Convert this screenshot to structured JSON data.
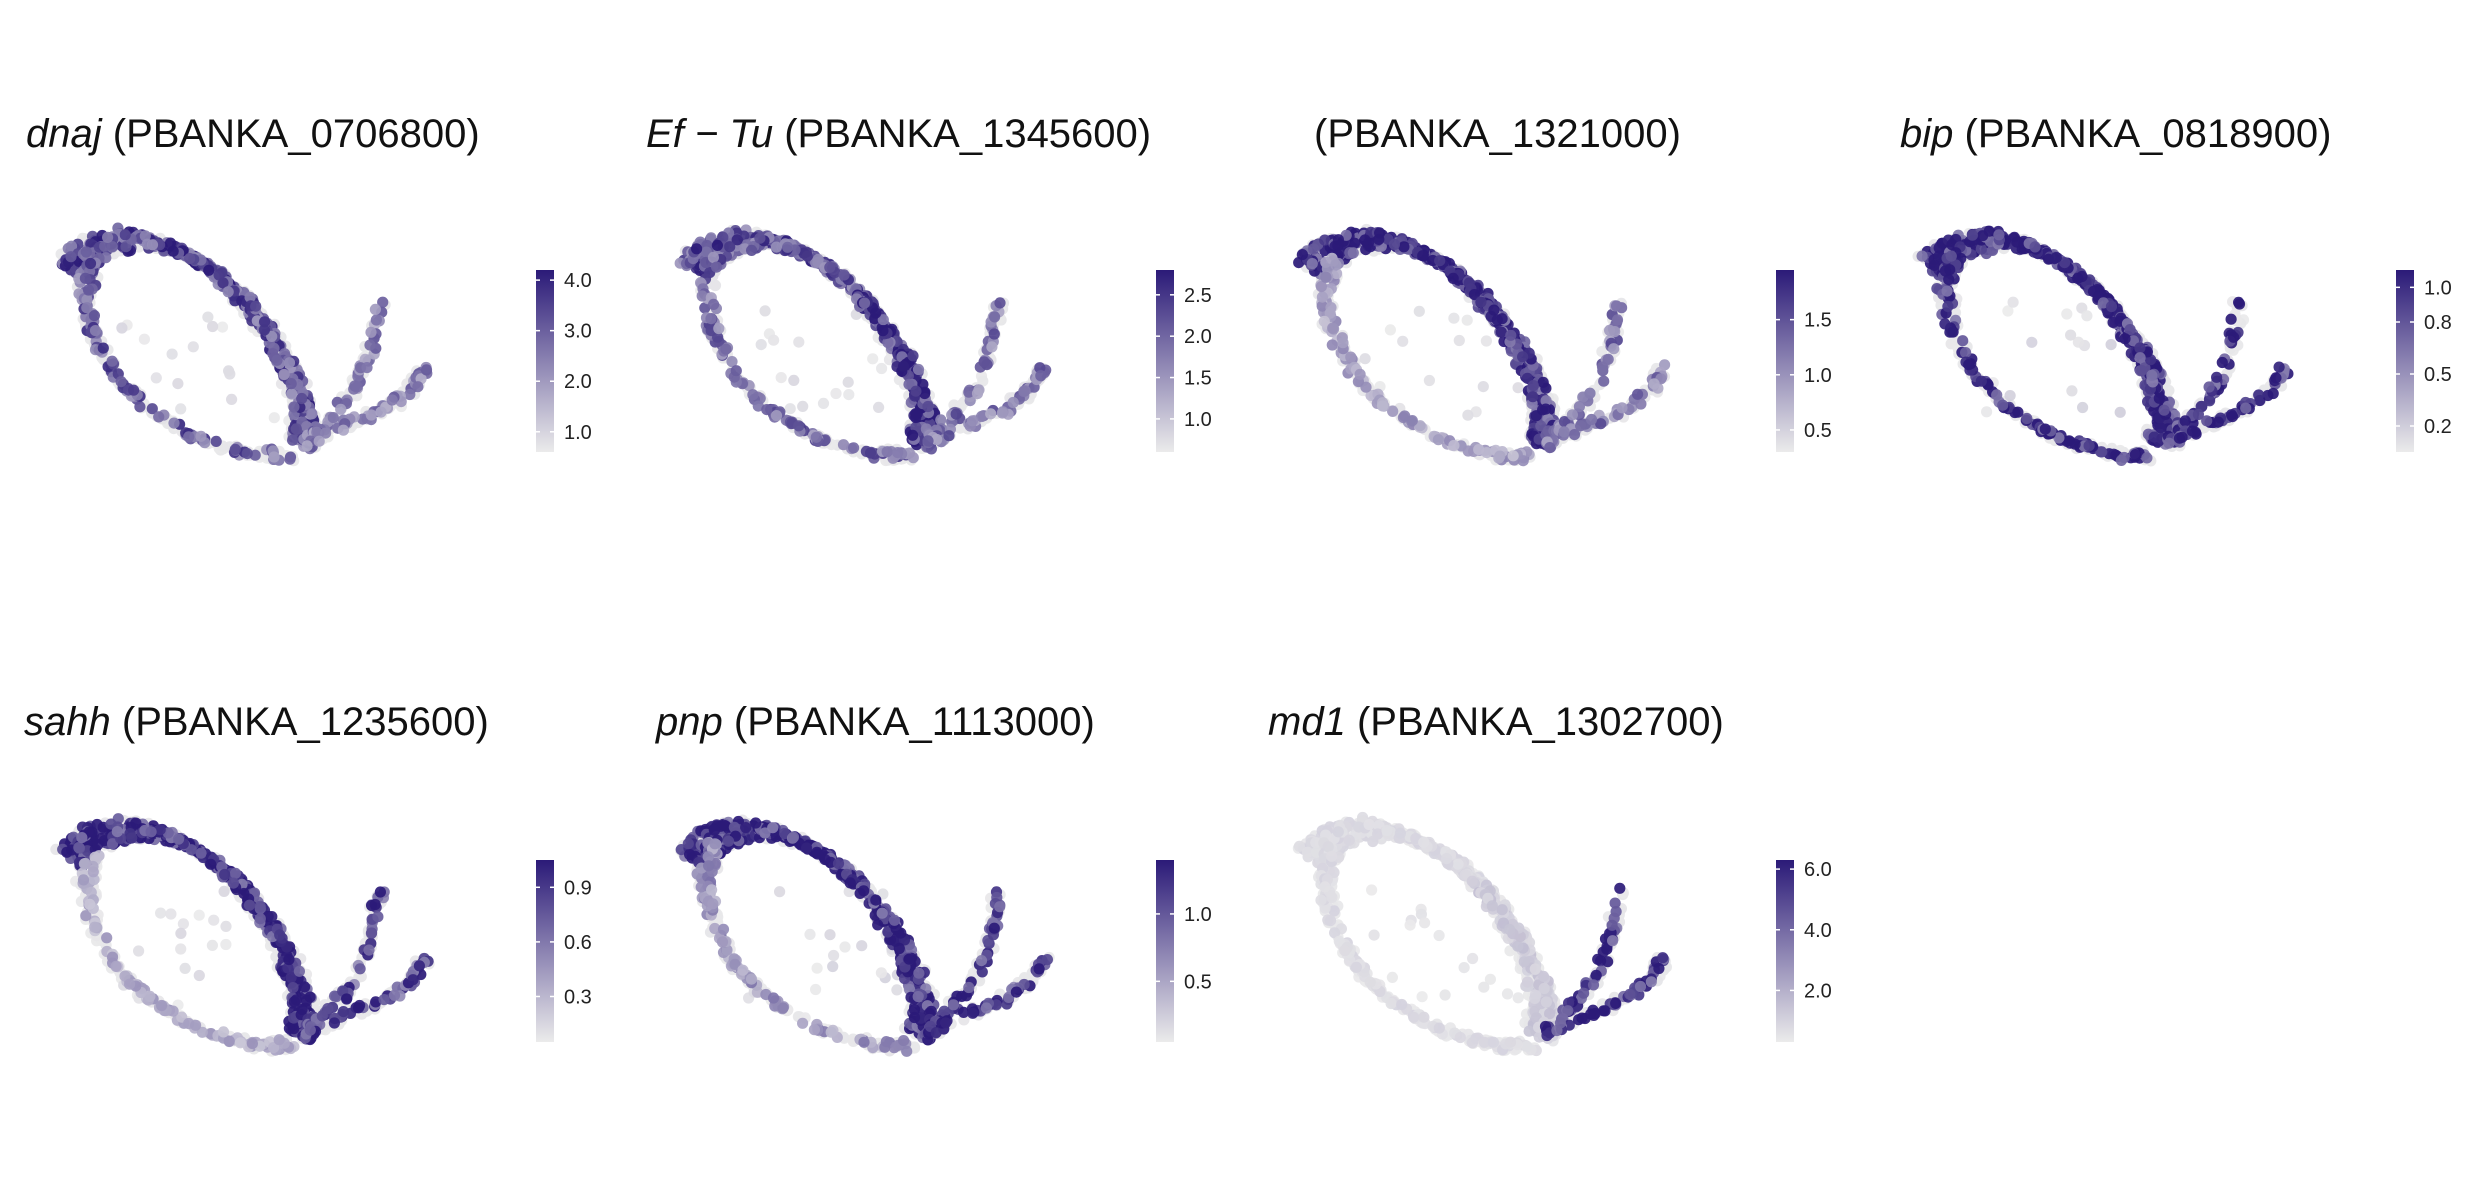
{
  "colors": {
    "high": "#2b1a78",
    "low": "#ebebeb"
  },
  "chart_data": [
    {
      "type": "scatter",
      "gene": "dnaj",
      "id": "(PBANKA_0706800)",
      "colorbar": {
        "ticks": [
          1.0,
          2.0,
          3.0,
          4.0
        ],
        "tick_labels": [
          "1.0",
          "2.0",
          "3.0",
          "4.0"
        ],
        "range": [
          0.6,
          4.2
        ]
      },
      "expression": {
        "top_left_arc": 0.75,
        "right_arm": 0.7,
        "bottom_arc": 0.65,
        "branches": 0.5,
        "interior": 0.1
      }
    },
    {
      "type": "scatter",
      "gene": "Ef − Tu",
      "id": "(PBANKA_1345600)",
      "colorbar": {
        "ticks": [
          1.0,
          1.5,
          2.0,
          2.5
        ],
        "tick_labels": [
          "1.0",
          "1.5",
          "2.0",
          "2.5"
        ],
        "range": [
          0.6,
          2.8
        ]
      },
      "expression": {
        "top_left_arc": 0.7,
        "right_arm": 0.9,
        "bottom_arc": 0.6,
        "branches": 0.55,
        "interior": 0.1
      }
    },
    {
      "type": "scatter",
      "gene": "",
      "id": "(PBANKA_1321000)",
      "colorbar": {
        "ticks": [
          0.5,
          1.0,
          1.5
        ],
        "tick_labels": [
          "0.5",
          "1.0",
          "1.5"
        ],
        "range": [
          0.3,
          1.95
        ]
      },
      "expression": {
        "top_left_arc": 0.95,
        "right_arm": 0.85,
        "bottom_arc": 0.35,
        "branches": 0.55,
        "interior": 0.1
      }
    },
    {
      "type": "scatter",
      "gene": "bip",
      "id": "(PBANKA_0818900)",
      "colorbar": {
        "ticks": [
          0.2,
          0.5,
          0.8,
          1.0
        ],
        "tick_labels": [
          "0.2",
          "0.5",
          "0.8",
          "1.0"
        ],
        "range": [
          0.05,
          1.1
        ]
      },
      "expression": {
        "top_left_arc": 0.95,
        "right_arm": 0.95,
        "bottom_arc": 0.95,
        "branches": 0.9,
        "interior": 0.15
      }
    },
    {
      "type": "scatter",
      "gene": "sahh",
      "id": "(PBANKA_1235600)",
      "colorbar": {
        "ticks": [
          0.3,
          0.6,
          0.9
        ],
        "tick_labels": [
          "0.3",
          "0.6",
          "0.9"
        ],
        "range": [
          0.05,
          1.05
        ]
      },
      "expression": {
        "top_left_arc": 0.95,
        "right_arm": 0.95,
        "bottom_arc": 0.3,
        "branches": 0.8,
        "interior": 0.1
      }
    },
    {
      "type": "scatter",
      "gene": "pnp",
      "id": "(PBANKA_1113000)",
      "colorbar": {
        "ticks": [
          0.5,
          1.0
        ],
        "tick_labels": [
          "0.5",
          "1.0"
        ],
        "range": [
          0.05,
          1.4
        ]
      },
      "expression": {
        "top_left_arc": 0.95,
        "right_arm": 0.9,
        "bottom_arc": 0.4,
        "branches": 0.8,
        "interior": 0.12
      }
    },
    {
      "type": "scatter",
      "gene": "md1",
      "id": "(PBANKA_1302700)",
      "colorbar": {
        "ticks": [
          2.0,
          4.0,
          6.0
        ],
        "tick_labels": [
          "2.0",
          "4.0",
          "6.0"
        ],
        "range": [
          0.3,
          6.3
        ]
      },
      "expression": {
        "top_left_arc": 0.08,
        "right_arm": 0.15,
        "bottom_arc": 0.08,
        "branches": 0.85,
        "interior": 0.05
      }
    }
  ]
}
